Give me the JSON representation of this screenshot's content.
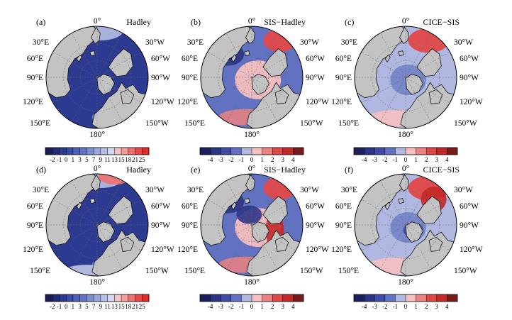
{
  "figure": {
    "panels": [
      {
        "letter": "(a)",
        "title": "Hadley",
        "row": 0,
        "col": 0,
        "colorbar": "sst"
      },
      {
        "letter": "(b)",
        "title": "SIS−Hadley",
        "row": 0,
        "col": 1,
        "colorbar": "diff"
      },
      {
        "letter": "(c)",
        "title": "CICE−SIS",
        "row": 0,
        "col": 2,
        "colorbar": "diff"
      },
      {
        "letter": "(d)",
        "title": "Hadley",
        "row": 1,
        "col": 0,
        "colorbar": "sst"
      },
      {
        "letter": "(e)",
        "title": "SIS−Hadley",
        "row": 1,
        "col": 1,
        "colorbar": "diff"
      },
      {
        "letter": "(f)",
        "title": "CICE−SIS",
        "row": 1,
        "col": 2,
        "colorbar": "diff"
      }
    ],
    "longitude_labels": {
      "top": "0°",
      "upper_left": "30°E",
      "upper_right": "30°W",
      "mid_upper_left": "60°E",
      "mid_upper_right": "60°W",
      "left": "90°E",
      "right": "90°W",
      "mid_lower_left": "120°E",
      "mid_lower_right": "120°W",
      "lower_left": "150°E",
      "lower_right": "150°W",
      "bottom": "180°"
    },
    "colorbars": {
      "sst": {
        "ticks": [
          "-2",
          "-1",
          "0",
          "1",
          "3",
          "5",
          "7",
          "9",
          "11",
          "13",
          "15",
          "18",
          "21",
          "25"
        ],
        "colors": [
          "#1a1a55",
          "#232a78",
          "#2d3a92",
          "#3c4ca6",
          "#4d5fb6",
          "#6275c4",
          "#7c8ed0",
          "#98a8dc",
          "#b6c0e6",
          "#d2d8ef",
          "#f2c4c4",
          "#f29c9c",
          "#ef6f6f",
          "#e84848",
          "#e42a2a"
        ]
      },
      "diff": {
        "ticks": [
          "-4",
          "-3",
          "-2",
          "-1",
          "0",
          "1",
          "2",
          "3",
          "4"
        ],
        "colors": [
          "#1c1f5c",
          "#2b3487",
          "#3f4ca8",
          "#6272c2",
          "#b0b8e2",
          "#f6c0c0",
          "#ec8282",
          "#e04848",
          "#c42828",
          "#7a1a1a"
        ]
      }
    },
    "styling": {
      "land_color": "#c3c3c3",
      "ocean_base_color": "#2d3a92",
      "coast_color": "#111111",
      "grid_color": "#666666"
    }
  }
}
